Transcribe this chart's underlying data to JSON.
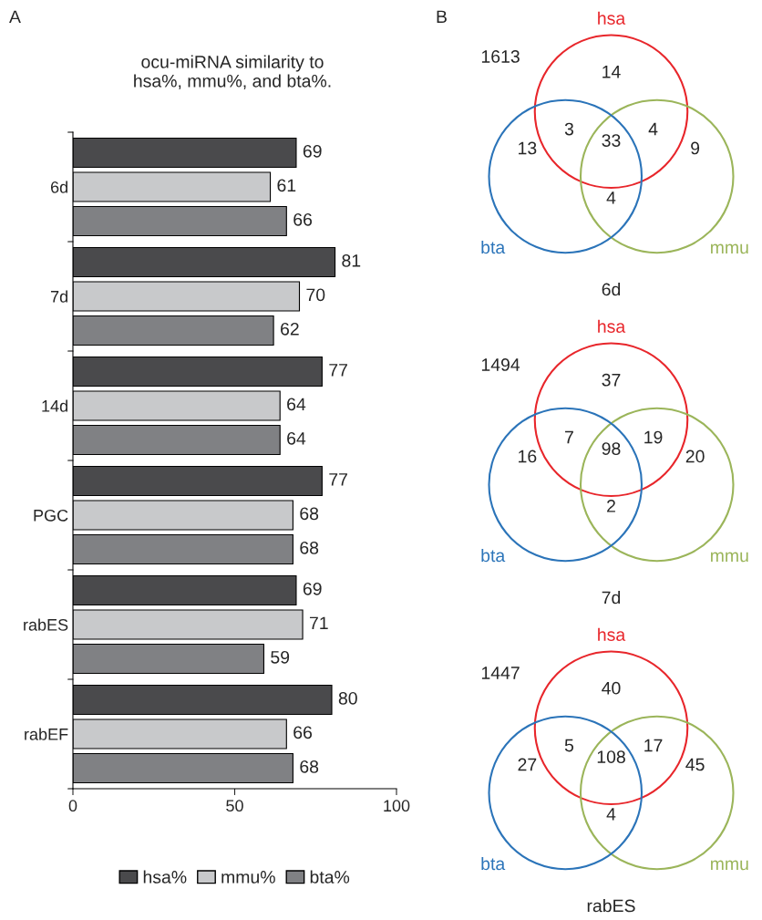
{
  "chart_data": [
    {
      "type": "bar",
      "orientation": "horizontal",
      "title": "ocu-miRNA similarity to\nhsa%, mmu%, and bta%.",
      "annotations": [
        "A"
      ],
      "categories": [
        "6d",
        "7d",
        "14d",
        "PGC",
        "rabES",
        "rabEF"
      ],
      "series": [
        {
          "name": "hsa%",
          "color": "#4a4a4c",
          "values": [
            69,
            81,
            77,
            77,
            69,
            80
          ]
        },
        {
          "name": "mmu%",
          "color": "#c8c9cb",
          "values": [
            61,
            70,
            64,
            68,
            71,
            66
          ]
        },
        {
          "name": "bta%",
          "color": "#808184",
          "values": [
            66,
            62,
            64,
            68,
            59,
            68
          ]
        }
      ],
      "xlim": [
        0,
        100
      ],
      "xticks": [
        0,
        50,
        100
      ],
      "data_labels": true,
      "legend": "bottom",
      "grid": false
    },
    {
      "type": "other",
      "title": "6d",
      "series": [
        {
          "name": "hsa",
          "color": "#e8262b"
        },
        {
          "name": "mmu",
          "color": "#9bb55a"
        },
        {
          "name": "bta",
          "color": "#2b74b9"
        }
      ],
      "annotations": [
        "1613",
        "14",
        "3",
        "33",
        "4",
        "13",
        "9",
        "4",
        "B"
      ]
    },
    {
      "type": "other",
      "title": "7d",
      "series": [
        {
          "name": "hsa",
          "color": "#e8262b"
        },
        {
          "name": "mmu",
          "color": "#9bb55a"
        },
        {
          "name": "bta",
          "color": "#2b74b9"
        }
      ],
      "annotations": [
        "1494",
        "37",
        "7",
        "98",
        "19",
        "16",
        "20",
        "2"
      ]
    },
    {
      "type": "other",
      "title": "rabES",
      "series": [
        {
          "name": "hsa",
          "color": "#e8262b"
        },
        {
          "name": "mmu",
          "color": "#9bb55a"
        },
        {
          "name": "bta",
          "color": "#2b74b9"
        }
      ],
      "annotations": [
        "1447",
        "40",
        "5",
        "108",
        "17",
        "27",
        "45",
        "4"
      ]
    }
  ]
}
